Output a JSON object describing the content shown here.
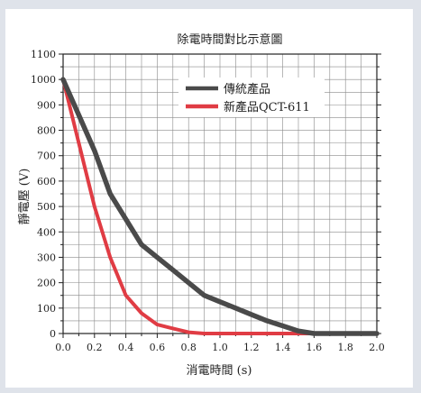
{
  "chart_data": {
    "type": "line",
    "title": "除電時間對比示意圖",
    "xlabel": "消電時間 (s)",
    "ylabel": "靜電壓 (V)",
    "xlim": [
      0.0,
      2.0
    ],
    "ylim": [
      0,
      1100
    ],
    "xticks": [
      "0.0",
      "0.2",
      "0.4",
      "0.6",
      "0.8",
      "1.0",
      "1.2",
      "1.4",
      "1.6",
      "1.8",
      "2.0"
    ],
    "yticks": [
      "0",
      "100",
      "200",
      "300",
      "400",
      "500",
      "600",
      "700",
      "800",
      "900",
      "1000",
      "1100"
    ],
    "grid": true,
    "legend_position": "top-right",
    "series": [
      {
        "name": "傳統產品",
        "color": "#4a4a4a",
        "x": [
          0.0,
          0.1,
          0.2,
          0.3,
          0.4,
          0.5,
          0.6,
          0.7,
          0.8,
          0.9,
          1.0,
          1.1,
          1.2,
          1.3,
          1.4,
          1.5,
          1.6,
          1.7,
          1.8,
          1.9,
          2.0
        ],
        "y": [
          1000,
          860,
          720,
          550,
          450,
          350,
          300,
          250,
          200,
          150,
          125,
          100,
          75,
          50,
          30,
          10,
          0,
          0,
          0,
          0,
          0
        ]
      },
      {
        "name": "新產品QCT-611",
        "color": "#e03c44",
        "x": [
          0.0,
          0.1,
          0.2,
          0.3,
          0.4,
          0.5,
          0.6,
          0.7,
          0.8,
          0.9,
          1.0,
          1.2,
          1.4,
          1.6,
          1.8,
          2.0
        ],
        "y": [
          1000,
          750,
          500,
          300,
          150,
          80,
          35,
          20,
          5,
          0,
          0,
          0,
          0,
          0,
          0,
          0
        ]
      }
    ]
  }
}
